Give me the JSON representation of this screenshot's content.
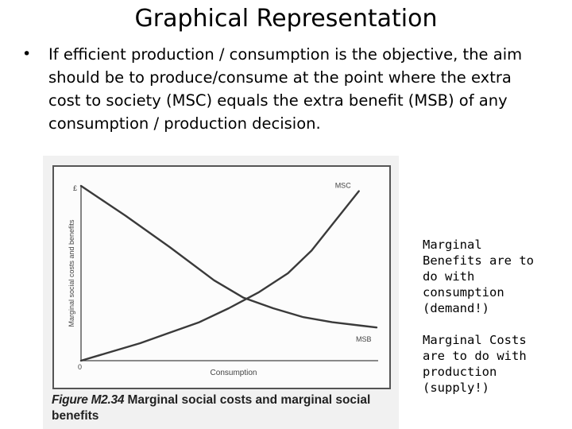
{
  "slide": {
    "title": "Graphical Representation",
    "bullet": "If efficient production / consumption is the objective, the aim should be to produce/consume at the point where the extra cost to society (MSC) equals the extra benefit (MSB) of any consumption / production decision."
  },
  "figure": {
    "label": "Figure M2.34",
    "caption": "Marginal social costs and marginal social benefits"
  },
  "notes": {
    "benefits": "Marginal\nBenefits are to\ndo with\nconsumption\n(demand!)",
    "costs": "Marginal Costs\nare to do with\nproduction\n(supply!)"
  },
  "chart_data": {
    "type": "line",
    "xlabel": "Consumption",
    "ylabel": "Marginal social costs and benefits",
    "y_axis_top_label": "£",
    "origin_label": "0",
    "series": [
      {
        "name": "MSC",
        "x": [
          0,
          0.1,
          0.2,
          0.3,
          0.4,
          0.5,
          0.6,
          0.7,
          0.78,
          0.86,
          0.94
        ],
        "y": [
          0.0,
          0.05,
          0.1,
          0.16,
          0.22,
          0.3,
          0.39,
          0.5,
          0.63,
          0.8,
          0.97
        ]
      },
      {
        "name": "MSB",
        "x": [
          0,
          0.15,
          0.3,
          0.45,
          0.55,
          0.65,
          0.75,
          0.85,
          0.95,
          1.0
        ],
        "y": [
          1.0,
          0.83,
          0.65,
          0.46,
          0.36,
          0.3,
          0.25,
          0.22,
          0.2,
          0.19
        ]
      }
    ],
    "colors": {
      "line": "#3a3a3a",
      "axis": "#444444",
      "frame": "#555555"
    }
  }
}
